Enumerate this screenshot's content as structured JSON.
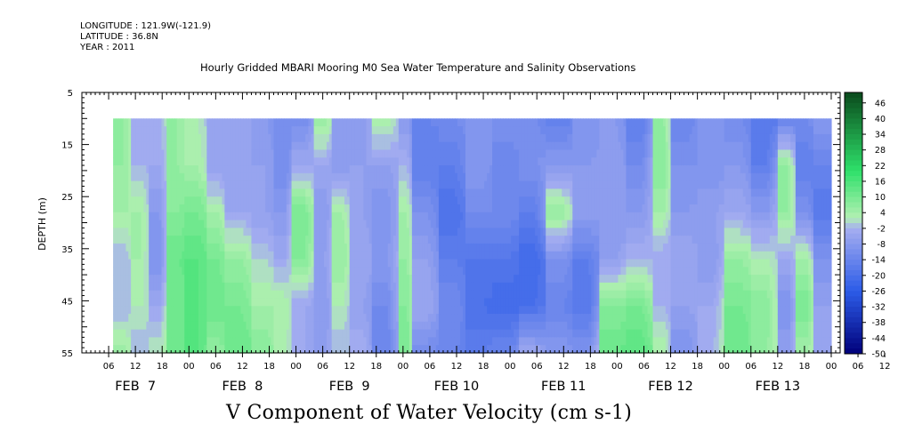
{
  "header": {
    "longitude": "LONGITUDE : 121.9W(-121.9)",
    "latitude": "LATITUDE : 36.8N",
    "year": "YEAR : 2011"
  },
  "title": "Hourly Gridded MBARI Mooring M0 Sea Water Temperature and Salinity Observations",
  "variable_title": "V Component of Water Velocity (cm s-1)",
  "chart_data": {
    "type": "heatmap",
    "title": "Hourly Gridded MBARI Mooring M0 Sea Water Temperature and Salinity Observations",
    "xlabel": "",
    "ylabel": "DEPTH (m)",
    "ylim": [
      55,
      5
    ],
    "y_ticks": [
      5,
      15,
      25,
      35,
      45,
      55
    ],
    "x_hour_ticks": [
      "06",
      "12",
      "18",
      "00",
      "06",
      "12",
      "18",
      "00",
      "06",
      "12",
      "18",
      "00",
      "06",
      "12",
      "18",
      "00",
      "06",
      "12",
      "18",
      "00",
      "06",
      "12",
      "18",
      "00",
      "06",
      "12",
      "18",
      "00",
      "06",
      "12",
      "18",
      "00"
    ],
    "x_day_labels": [
      "FEB  7",
      "FEB  8",
      "FEB  9",
      "FEB 10",
      "FEB 11",
      "FEB 12",
      "FEB 13"
    ],
    "xlim_hours": [
      0,
      170
    ],
    "data_start_hour": 7,
    "data_depth_top": 10,
    "colorbar": {
      "min": -50,
      "max": 50,
      "step": 2,
      "labels": [
        "46",
        "40",
        "34",
        "28",
        "22",
        "16",
        "10",
        "4",
        "-2",
        "-8",
        "-14",
        "-20",
        "-26",
        "-32",
        "-38",
        "-44",
        "-50"
      ],
      "negative_color_deep": "#00007a",
      "negative_color_mid": "#2c5ce8",
      "negative_color_light": "#a6aef0",
      "positive_color_light": "#b2f0b2",
      "positive_color_mid": "#2ee06a",
      "positive_color_deep": "#0a4a1c"
    },
    "columns": [
      {
        "hour_start": 7,
        "hour_end": 11,
        "values": [
          6,
          6,
          4,
          -2,
          -2,
          5
        ]
      },
      {
        "hour_start": 11,
        "hour_end": 15,
        "values": [
          -4,
          -2,
          4,
          4,
          2,
          -2
        ]
      },
      {
        "hour_start": 15,
        "hour_end": 19,
        "values": [
          -2,
          -4,
          -8,
          -10,
          -4,
          2
        ]
      },
      {
        "hour_start": 19,
        "hour_end": 23,
        "values": [
          6,
          6,
          8,
          12,
          10,
          10
        ]
      },
      {
        "hour_start": 23,
        "hour_end": 28,
        "values": [
          2,
          4,
          10,
          14,
          14,
          14
        ]
      },
      {
        "hour_start": 28,
        "hour_end": 32,
        "values": [
          -6,
          -6,
          4,
          10,
          12,
          6
        ]
      },
      {
        "hour_start": 32,
        "hour_end": 38,
        "values": [
          -4,
          -6,
          -4,
          6,
          10,
          12
        ]
      },
      {
        "hour_start": 38,
        "hour_end": 43,
        "values": [
          -8,
          -6,
          -6,
          0,
          4,
          8
        ]
      },
      {
        "hour_start": 43,
        "hour_end": 47,
        "values": [
          -10,
          -12,
          -8,
          -4,
          4,
          2
        ]
      },
      {
        "hour_start": 47,
        "hour_end": 52,
        "values": [
          -12,
          -4,
          10,
          8,
          -4,
          -4
        ]
      },
      {
        "hour_start": 52,
        "hour_end": 56,
        "values": [
          6,
          -4,
          -8,
          -6,
          -8,
          -6
        ]
      },
      {
        "hour_start": 56,
        "hour_end": 60,
        "values": [
          -6,
          -8,
          4,
          6,
          2,
          -2
        ]
      },
      {
        "hour_start": 60,
        "hour_end": 65,
        "values": [
          -8,
          -6,
          -6,
          -4,
          -6,
          -2
        ]
      },
      {
        "hour_start": 65,
        "hour_end": 71,
        "values": [
          4,
          -6,
          -10,
          -8,
          -12,
          -14
        ]
      },
      {
        "hour_start": 71,
        "hour_end": 74,
        "values": [
          -8,
          -2,
          4,
          6,
          8,
          10
        ]
      },
      {
        "hour_start": 74,
        "hour_end": 80,
        "values": [
          -14,
          -16,
          -10,
          -6,
          -4,
          -12
        ]
      },
      {
        "hour_start": 80,
        "hour_end": 86,
        "values": [
          -12,
          -16,
          -20,
          -16,
          -12,
          -14
        ]
      },
      {
        "hour_start": 86,
        "hour_end": 92,
        "values": [
          -10,
          -8,
          -12,
          -18,
          -20,
          -16
        ]
      },
      {
        "hour_start": 92,
        "hour_end": 98,
        "values": [
          -10,
          -14,
          -12,
          -18,
          -22,
          -14
        ]
      },
      {
        "hour_start": 98,
        "hour_end": 104,
        "values": [
          -12,
          -10,
          -16,
          -22,
          -20,
          -4
        ]
      },
      {
        "hour_start": 104,
        "hour_end": 110,
        "values": [
          -16,
          -8,
          6,
          -10,
          -14,
          -8
        ]
      },
      {
        "hour_start": 110,
        "hour_end": 116,
        "values": [
          -10,
          -8,
          -6,
          -16,
          -18,
          -10
        ]
      },
      {
        "hour_start": 116,
        "hour_end": 122,
        "values": [
          -8,
          -6,
          -8,
          -6,
          8,
          12
        ]
      },
      {
        "hour_start": 122,
        "hour_end": 128,
        "values": [
          -16,
          -12,
          -8,
          -2,
          10,
          14
        ]
      },
      {
        "hour_start": 128,
        "hour_end": 132,
        "values": [
          6,
          8,
          4,
          -4,
          -2,
          4
        ]
      },
      {
        "hour_start": 132,
        "hour_end": 138,
        "values": [
          -14,
          -10,
          -8,
          -4,
          -6,
          -10
        ]
      },
      {
        "hour_start": 138,
        "hour_end": 144,
        "values": [
          -8,
          -10,
          -6,
          -8,
          -4,
          -2
        ]
      },
      {
        "hour_start": 144,
        "hour_end": 150,
        "values": [
          -12,
          -8,
          -4,
          6,
          10,
          12
        ]
      },
      {
        "hour_start": 150,
        "hour_end": 156,
        "values": [
          -18,
          -16,
          -8,
          2,
          8,
          6
        ]
      },
      {
        "hour_start": 156,
        "hour_end": 160,
        "values": [
          -14,
          6,
          6,
          -4,
          -10,
          -6
        ]
      },
      {
        "hour_start": 160,
        "hour_end": 164,
        "values": [
          -12,
          -16,
          -10,
          4,
          10,
          4
        ]
      },
      {
        "hour_start": 164,
        "hour_end": 168,
        "values": [
          -8,
          -14,
          -18,
          -10,
          -6,
          -4
        ]
      }
    ]
  }
}
